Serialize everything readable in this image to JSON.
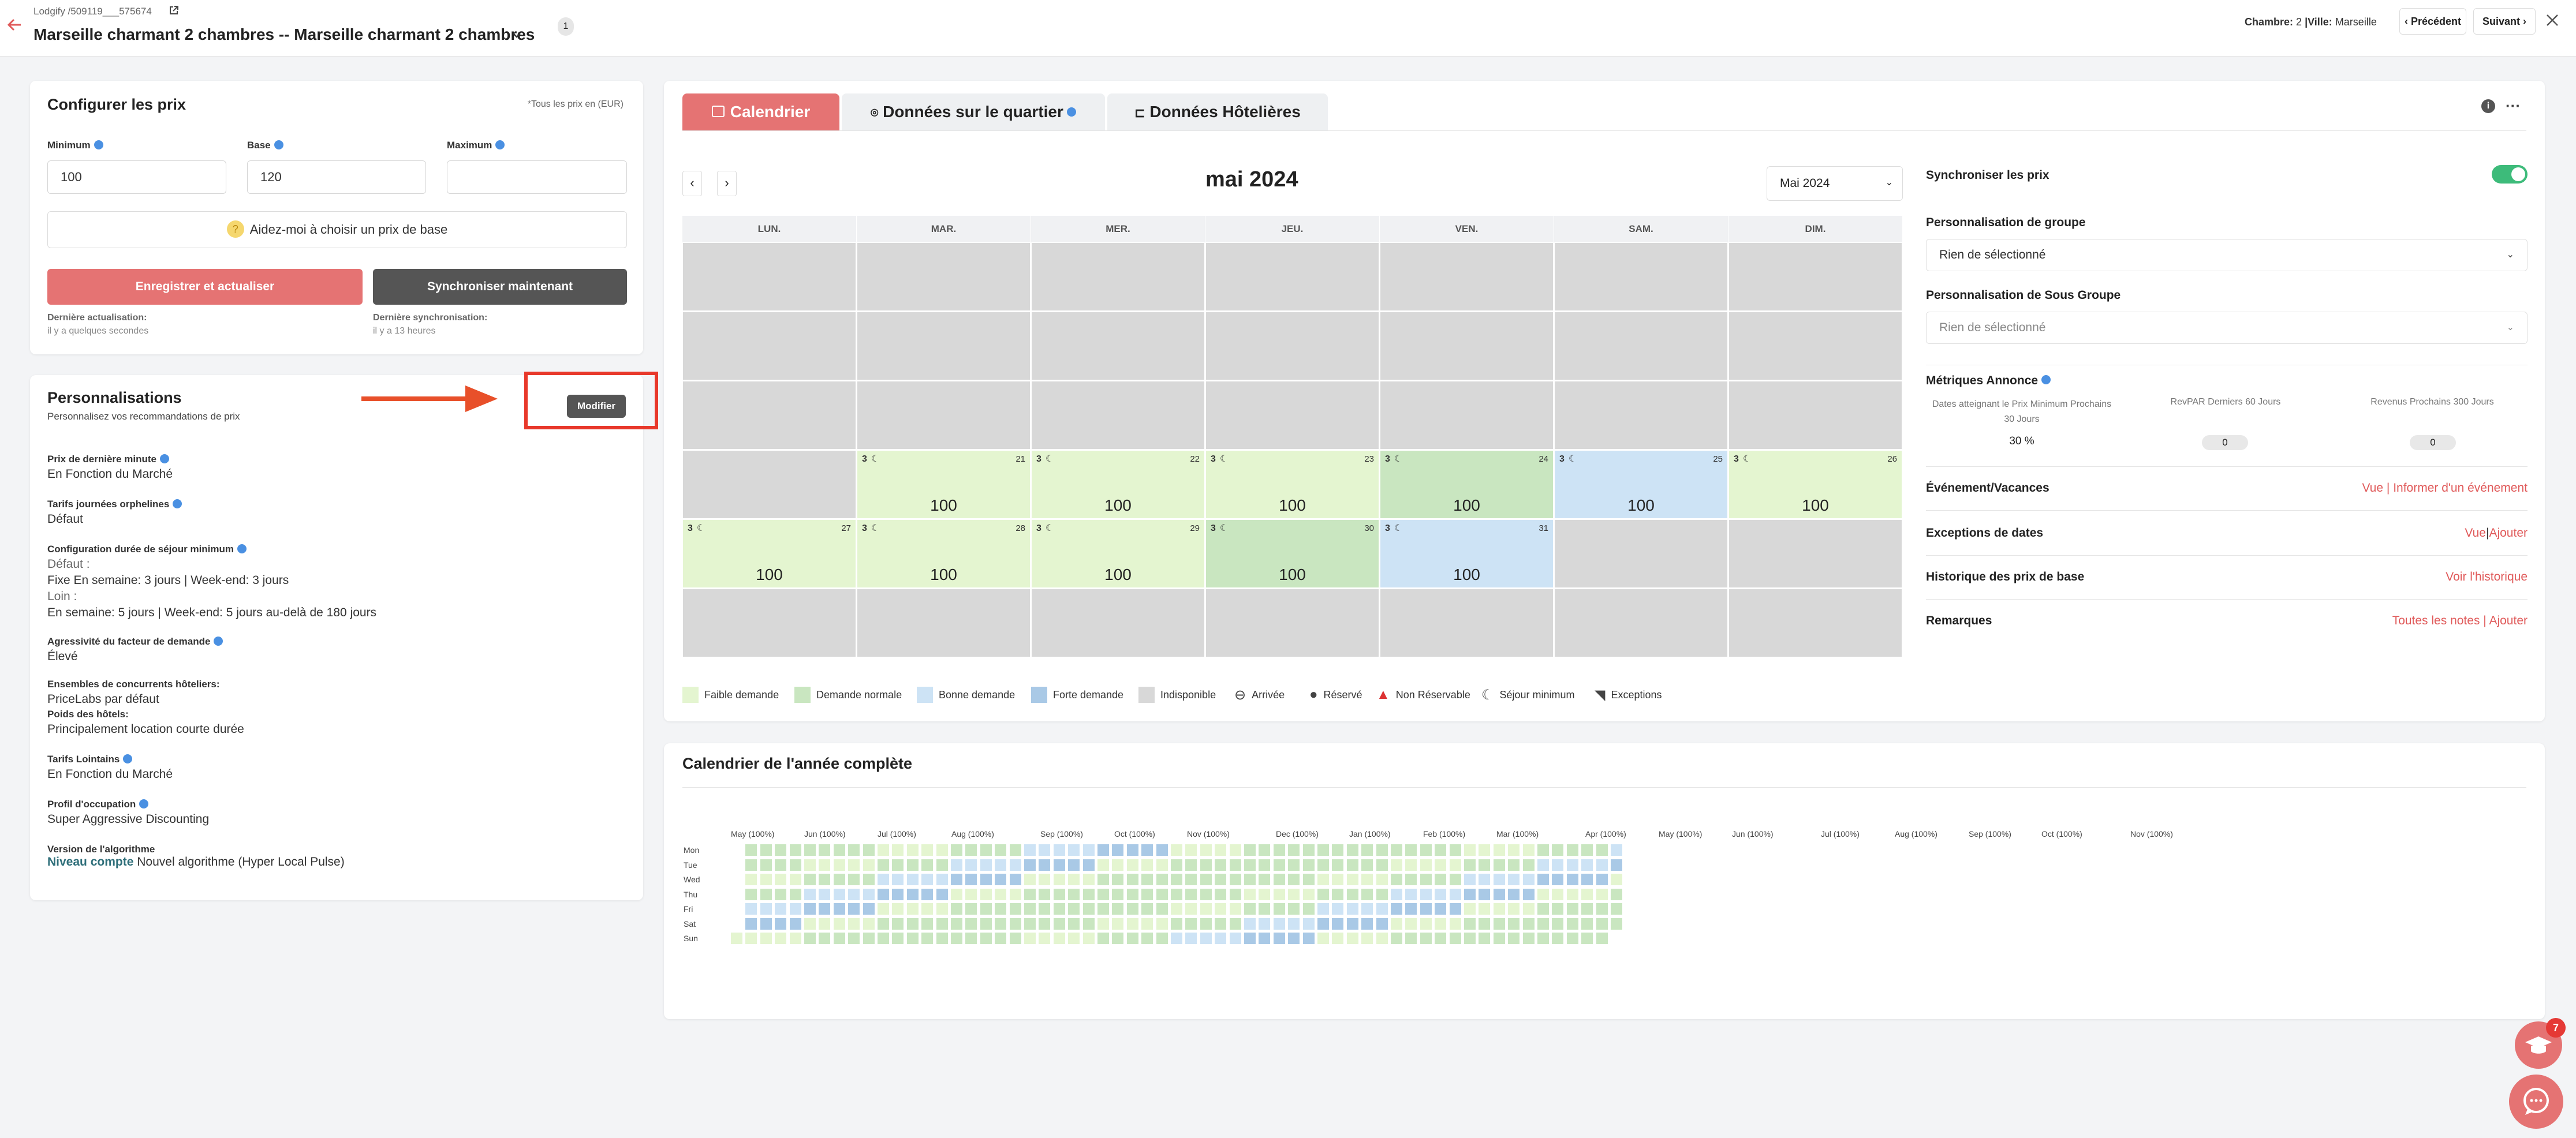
{
  "header": {
    "breadcrumb": "Lodgify /509119___575674",
    "title": "Marseille charmant 2 chambres -- Marseille charmant 2 chambres",
    "badge": "1",
    "chambre_label": "Chambre:",
    "chambre_value": "2",
    "ville_label": "|Ville:",
    "ville_value": "Marseille",
    "prev": "Précédent",
    "next": "Suivant"
  },
  "config": {
    "title": "Configurer les prix",
    "note": "*Tous les prix en (EUR)",
    "min_label": "Minimum",
    "min_value": "100",
    "base_label": "Base",
    "base_value": "120",
    "max_label": "Maximum",
    "max_value": "",
    "help": "Aidez-moi à choisir un prix de base",
    "save": "Enregistrer et actualiser",
    "sync": "Synchroniser maintenant",
    "last_update_label": "Dernière actualisation:",
    "last_update_value": "il y a quelques secondes",
    "last_sync_label": "Dernière synchronisation:",
    "last_sync_value": "il y a 13 heures"
  },
  "perso": {
    "title": "Personnalisations",
    "subtitle": "Personnalisez vos recommandations de prix",
    "modify": "Modifier",
    "items": [
      {
        "label": "Prix de dernière minute",
        "info": true,
        "lines": [
          "En Fonction du Marché"
        ]
      },
      {
        "label": "Tarifs journées orphelines",
        "info": true,
        "lines": [
          "Défaut"
        ]
      },
      {
        "label": "Configuration durée de séjour minimum",
        "info": true,
        "lines": [
          "Défaut :",
          "Fixe En semaine: 3 jours | Week-end: 3 jours",
          "Loin :",
          "En semaine: 5 jours | Week-end: 5 jours au-delà de 180 jours"
        ]
      },
      {
        "label": "Agressivité du facteur de demande",
        "info": true,
        "lines": [
          "Élevé"
        ]
      },
      {
        "label": "Ensembles de concurrents hôteliers:",
        "info": false,
        "lines": [
          "PriceLabs par défaut"
        ]
      },
      {
        "label": "Poids des hôtels:",
        "info": false,
        "lines": [
          "Principalement location courte durée"
        ]
      },
      {
        "label": "Tarifs Lointains",
        "info": true,
        "lines": [
          "En Fonction du Marché"
        ]
      },
      {
        "label": "Profil d'occupation",
        "info": true,
        "lines": [
          "Super Aggressive Discounting"
        ]
      },
      {
        "label": "Version de l'algorithme",
        "info": false,
        "lines": []
      }
    ],
    "algo_link": "Niveau compte",
    "algo_value": "Nouvel algorithme (Hyper Local Pulse)"
  },
  "tabs": {
    "calendar": "Calendrier",
    "quartier": "Données sur le quartier",
    "hotel": "Données Hôtelières"
  },
  "calendar": {
    "month_title": "mai 2024",
    "month_select": "Mai 2024",
    "days": [
      "LUN.",
      "MAR.",
      "MER.",
      "JEU.",
      "VEN.",
      "SAM.",
      "DIM."
    ],
    "minstay": "3",
    "weeks": [
      [
        {},
        {},
        {},
        {},
        {},
        {},
        {}
      ],
      [
        {},
        {},
        {},
        {},
        {},
        {},
        {}
      ],
      [
        {},
        {},
        {},
        {},
        {},
        {},
        {}
      ],
      [
        {},
        {
          "d": "21",
          "p": "100",
          "c": "low"
        },
        {
          "d": "22",
          "p": "100",
          "c": "low"
        },
        {
          "d": "23",
          "p": "100",
          "c": "low"
        },
        {
          "d": "24",
          "p": "100",
          "c": "normal"
        },
        {
          "d": "25",
          "p": "100",
          "c": "good"
        },
        {
          "d": "26",
          "p": "100",
          "c": "low"
        }
      ],
      [
        {
          "d": "27",
          "p": "100",
          "c": "low"
        },
        {
          "d": "28",
          "p": "100",
          "c": "low"
        },
        {
          "d": "29",
          "p": "100",
          "c": "low"
        },
        {
          "d": "30",
          "p": "100",
          "c": "normal"
        },
        {
          "d": "31",
          "p": "100",
          "c": "good"
        },
        {},
        {}
      ],
      [
        {},
        {},
        {},
        {},
        {},
        {},
        {}
      ]
    ]
  },
  "legend": [
    "Faible demande",
    "Demande normale",
    "Bonne demande",
    "Forte demande",
    "Indisponible",
    "Arrivée",
    "Réservé",
    "Non Réservable",
    "Séjour minimum",
    "Exceptions"
  ],
  "colors": {
    "low": "#e4f5d0",
    "normal": "#c9e6c0",
    "good": "#cde3f5",
    "high": "#a9c9e6",
    "unavail": "#d8d8d8",
    "accent": "#e57373",
    "dark": "#555555",
    "toggle": "#3dbb7a"
  },
  "side": {
    "sync_label": "Synchroniser les prix",
    "group_label": "Personnalisation de groupe",
    "group_value": "Rien de sélectionné",
    "subgroup_label": "Personnalisation de Sous Groupe",
    "subgroup_value": "Rien de sélectionné",
    "metrics_label": "Métriques Annonce",
    "m1_label": "Dates atteignant le Prix Minimum Prochains 30 Jours",
    "m1_value": "30 %",
    "m2_label": "RevPAR Derniers 60 Jours",
    "m2_value": "0",
    "m3_label": "Revenus Prochains 300 Jours",
    "m3_value": "0",
    "events_label": "Événement/Vacances",
    "events_view": "Vue",
    "events_sep": "|",
    "events_inform": "Informer d'un événement",
    "exc_label": "Exceptions de dates",
    "exc_view": "Vue",
    "exc_sep": "|",
    "exc_add": "Ajouter",
    "hist_label": "Historique des prix de base",
    "hist_link": "Voir l'historique",
    "notes_label": "Remarques",
    "notes_all": "Toutes les notes",
    "notes_sep": "|",
    "notes_add": "Ajouter"
  },
  "year": {
    "title": "Calendrier de l'année complète",
    "months": [
      "May (100%)",
      "Jun (100%)",
      "Jul (100%)",
      "Aug (100%)",
      "Sep (100%)",
      "Oct (100%)",
      "Nov (100%)",
      "Dec (100%)",
      "Jan (100%)",
      "Feb (100%)",
      "Mar (100%)",
      "Apr (100%)",
      "May (100%)",
      "Jun (100%)",
      "Jul (100%)",
      "Aug (100%)",
      "Sep (100%)",
      "Oct (100%)",
      "Nov (100%)"
    ],
    "days": [
      "Mon",
      "Tue",
      "Wed",
      "Thu",
      "Fri",
      "Sat",
      "Sun"
    ]
  },
  "widgets": {
    "badge": "7"
  }
}
